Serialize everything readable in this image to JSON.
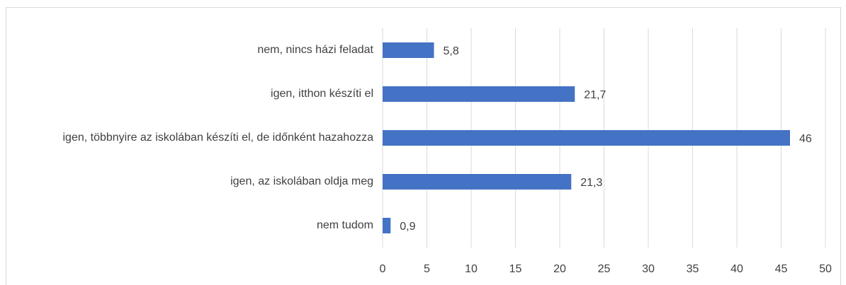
{
  "chart_data": {
    "type": "bar",
    "orientation": "horizontal",
    "categories": [
      "nem, nincs házi feladat",
      "igen, itthon készíti el",
      "igen, többnyire az iskolában készíti el, de időnként hazahozza",
      "igen, az iskolában oldja meg",
      "nem tudom"
    ],
    "values": [
      5.8,
      21.7,
      46,
      21.3,
      0.9
    ],
    "value_labels": [
      "5,8",
      "21,7",
      "46",
      "21,3",
      "0,9"
    ],
    "color": "#4472c4",
    "xlim": [
      0,
      50
    ],
    "xticks": [
      0,
      5,
      10,
      15,
      20,
      25,
      30,
      35,
      40,
      45,
      50
    ],
    "grid": true
  }
}
